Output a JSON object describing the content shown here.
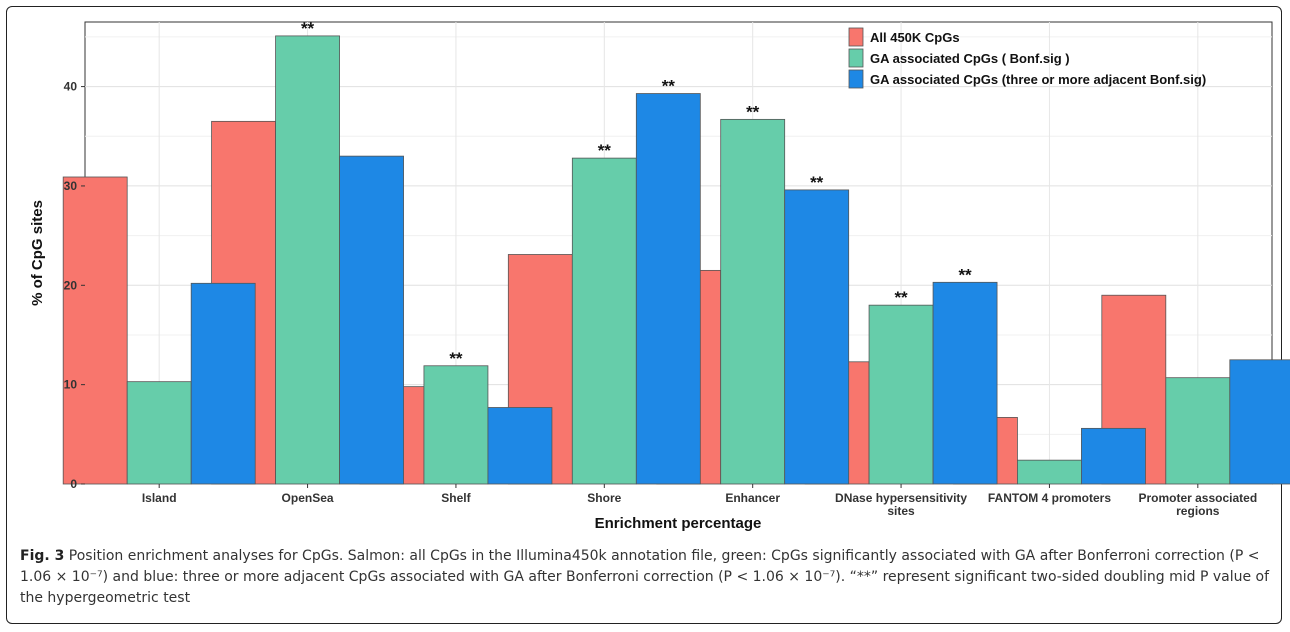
{
  "chart_data": {
    "type": "bar",
    "categories": [
      "Island",
      "OpenSea",
      "Shelf",
      "Shore",
      "Enhancer",
      "DNase hypersensitivity sites",
      "FANTOM 4 promoters",
      "Promoter associated regions"
    ],
    "series": [
      {
        "name": "All 450K CpGs",
        "color": "#F8766D",
        "values": [
          30.9,
          36.5,
          9.8,
          23.1,
          21.5,
          12.3,
          6.7,
          19.0
        ],
        "significant": [
          false,
          false,
          false,
          false,
          false,
          false,
          false,
          false
        ]
      },
      {
        "name": "GA associated CpGs ( Bonf.sig )",
        "color": "#66CDAA",
        "values": [
          10.3,
          45.1,
          11.9,
          32.8,
          36.7,
          18.0,
          2.4,
          10.7
        ],
        "significant": [
          false,
          true,
          true,
          true,
          true,
          true,
          false,
          false
        ]
      },
      {
        "name": "GA associated CpGs (three or more adjacent Bonf.sig)",
        "color": "#1E88E5",
        "values": [
          20.2,
          33.0,
          7.7,
          39.3,
          29.6,
          20.3,
          5.6,
          12.5
        ],
        "significant": [
          false,
          false,
          false,
          true,
          true,
          true,
          false,
          false
        ]
      }
    ],
    "xlabel": "Enrichment percentage",
    "ylabel": "% of CpG sites",
    "ylim": [
      0,
      46.5
    ],
    "yticks": [
      0,
      10,
      20,
      30,
      40
    ],
    "significance_marker": "**",
    "grid": true,
    "legend_position": "top-right"
  },
  "caption": {
    "label": "Fig. 3",
    "text": " Position enrichment analyses for CpGs. Salmon: all CpGs in the Illumina450k annotation file, green: CpGs significantly associated with GA after Bonferroni correction (P < 1.06 × 10⁻⁷) and blue: three or more adjacent CpGs associated with GA after Bonferroni correction (P < 1.06 × 10⁻⁷). “**” represent significant two-sided doubling mid P value of the hypergeometric test"
  }
}
